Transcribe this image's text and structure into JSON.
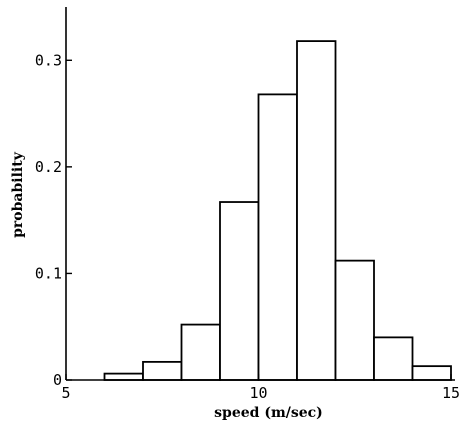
{
  "chart_data": {
    "type": "histogram",
    "title": "",
    "xlabel": "speed (m/sec)",
    "ylabel": "probability",
    "xlim": [
      5,
      15
    ],
    "ylim": [
      0,
      0.35
    ],
    "x_ticks": [
      5,
      10,
      15
    ],
    "x_tick_labels": [
      "5",
      "10",
      "15"
    ],
    "y_ticks": [
      0,
      0.1,
      0.2,
      0.3
    ],
    "y_tick_labels": [
      "0",
      "0.1",
      "0.2",
      "0.3"
    ],
    "bins": [
      {
        "x0": 6,
        "x1": 7,
        "value": 0.006
      },
      {
        "x0": 7,
        "x1": 8,
        "value": 0.017
      },
      {
        "x0": 8,
        "x1": 9,
        "value": 0.052
      },
      {
        "x0": 9,
        "x1": 10,
        "value": 0.167
      },
      {
        "x0": 10,
        "x1": 11,
        "value": 0.268
      },
      {
        "x0": 11,
        "x1": 12,
        "value": 0.318
      },
      {
        "x0": 12,
        "x1": 13,
        "value": 0.112
      },
      {
        "x0": 13,
        "x1": 14,
        "value": 0.04
      },
      {
        "x0": 14,
        "x1": 15,
        "value": 0.013
      }
    ],
    "grid": false,
    "legend": "none"
  }
}
